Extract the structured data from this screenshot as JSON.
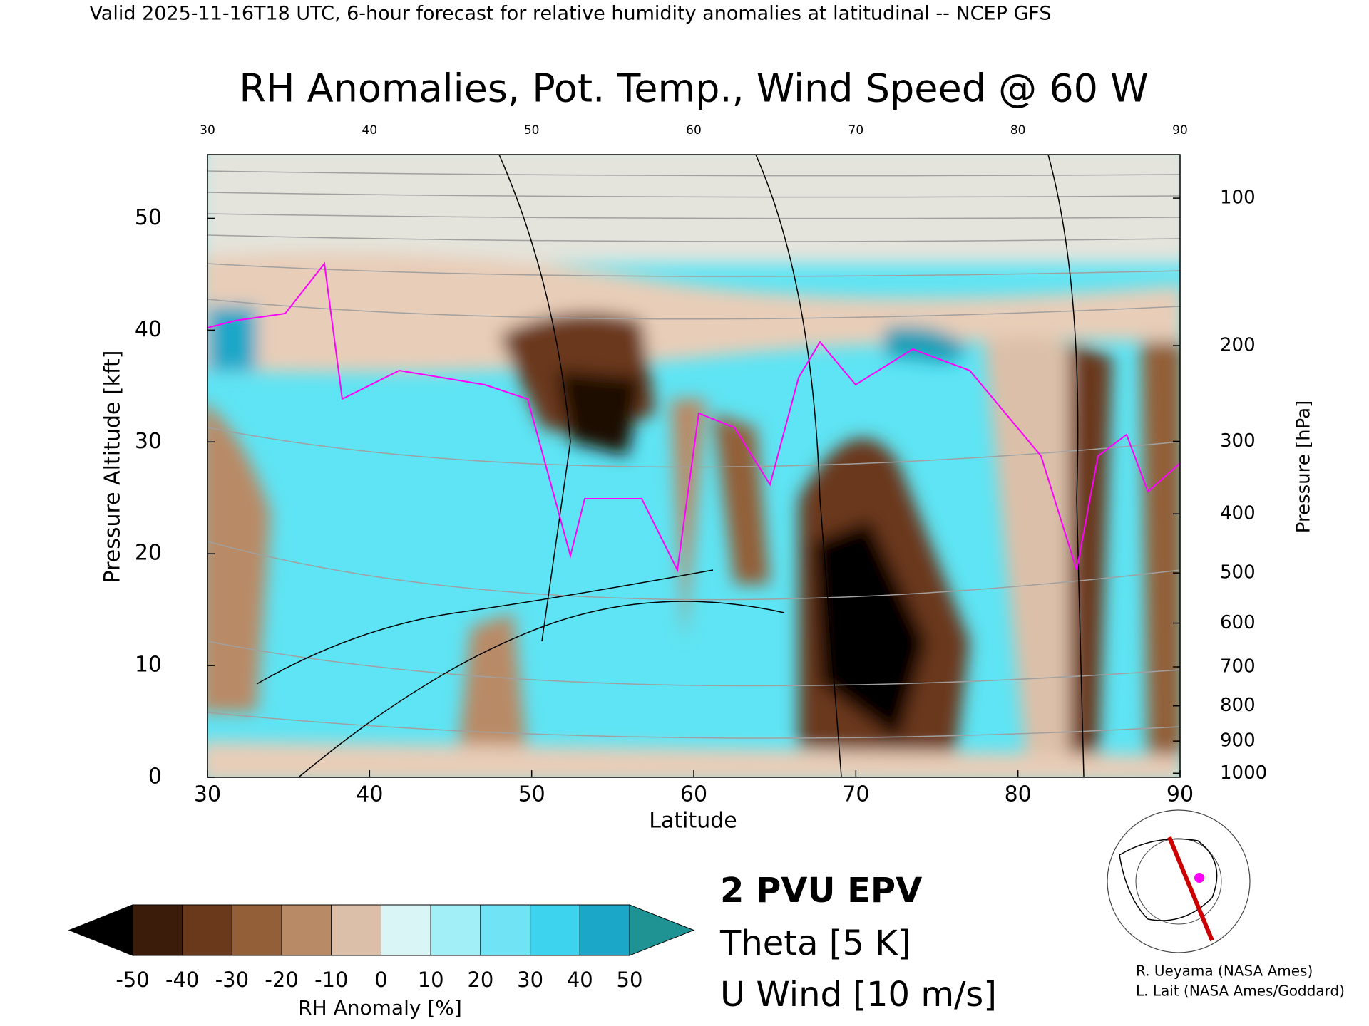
{
  "chart_data": {
    "type": "cross-section",
    "header": "Valid 2025-11-16T18 UTC, 6-hour forecast for relative humidity anomalies at latitudinal -- NCEP GFS",
    "title": "RH Anomalies, Pot. Temp., Wind Speed @ 60 W",
    "x_label": "Latitude",
    "y_label": "Pressure Altitude [kft]",
    "y2_label": "Pressure [hPa]",
    "xlim": [
      30,
      90
    ],
    "xticks": [
      30,
      40,
      50,
      60,
      70,
      80,
      90
    ],
    "ylim": [
      0,
      55.7
    ],
    "yticks": [
      0,
      10,
      20,
      30,
      40,
      50
    ],
    "y2scale": "pressure",
    "y2ticks": [
      100,
      200,
      300,
      400,
      500,
      600,
      700,
      800,
      900,
      1000
    ],
    "colorbar": {
      "label": "RH Anomaly [%]",
      "ticks": [
        -50,
        -40,
        -30,
        -20,
        -10,
        0,
        10,
        20,
        30,
        40,
        50
      ],
      "colors": [
        "#3b1b0a",
        "#6a391b",
        "#935f39",
        "#b98a66",
        "#dcbfa8",
        "#d9f5f6",
        "#a3eff8",
        "#70e4f5",
        "#3dd3ef",
        "#1aa7c8"
      ],
      "under_color": "#000000",
      "over_color": "#1f9393"
    },
    "legend": [
      {
        "name": "2 PVU EPV",
        "color": "#ff00ff"
      },
      {
        "name": "Theta [5 K]",
        "color": "#aaaaaa"
      },
      {
        "name": "U Wind [10 m/s]",
        "color": "#000000"
      }
    ],
    "credits": [
      "R. Ueyama (NASA Ames)",
      "L. Lait (NASA Ames/Goddard)"
    ]
  }
}
